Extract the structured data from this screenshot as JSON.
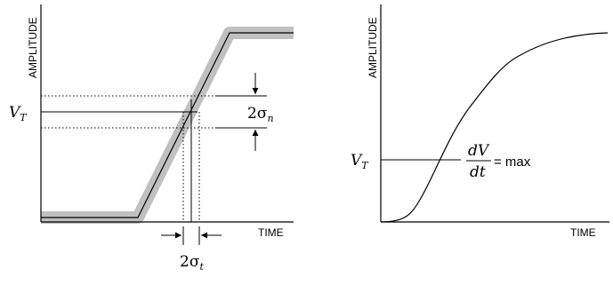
{
  "left_panel": {
    "y_axis_label": "AMPLITUDE",
    "x_axis_label": "TIME",
    "threshold_label": {
      "symbol": "V",
      "subscript": "T"
    },
    "amplitude_noise_label": {
      "coef": "2",
      "sigma": "σ",
      "subscript": "n"
    },
    "timing_jitter_label": {
      "coef": "2",
      "sigma": "σ",
      "subscript": "t"
    },
    "noise_band_color": "#c0c0c0",
    "line_color": "#000000"
  },
  "right_panel": {
    "y_axis_label": "AMPLITUDE",
    "x_axis_label": "TIME",
    "threshold_label": {
      "symbol": "V",
      "subscript": "T"
    },
    "slope_label": {
      "numerator": "dV",
      "denominator": "dt",
      "suffix": "= max"
    },
    "line_color": "#000000"
  }
}
